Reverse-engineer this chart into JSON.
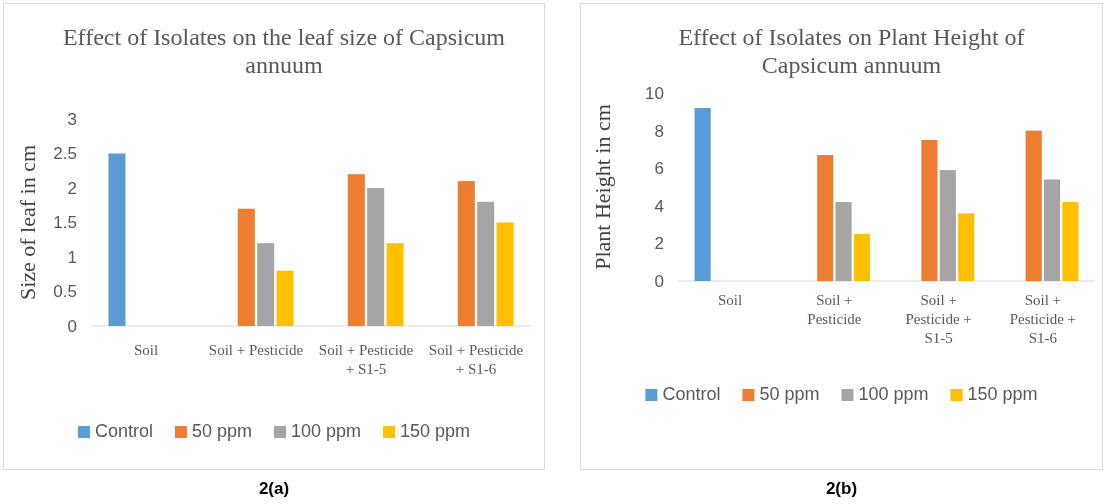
{
  "chart_data": [
    {
      "type": "bar",
      "title": "Effect of Isolates on the leaf size of Capsicum annuum",
      "ylabel": "Size of leaf in cm",
      "categories": [
        "Soil",
        "Soil + Pesticide",
        "Soil + Pesticide + S1-5",
        "Soil + Pesticide + S1-6"
      ],
      "series": [
        {
          "name": "Control",
          "color": "#5b9bd5",
          "values": [
            2.5,
            null,
            null,
            null
          ]
        },
        {
          "name": "50 ppm",
          "color": "#ed7d31",
          "values": [
            null,
            1.7,
            2.2,
            2.1
          ]
        },
        {
          "name": "100 ppm",
          "color": "#a5a5a5",
          "values": [
            null,
            1.2,
            2.0,
            1.8
          ]
        },
        {
          "name": "150 ppm",
          "color": "#ffc000",
          "values": [
            null,
            0.8,
            1.2,
            1.5
          ]
        }
      ],
      "ylim": [
        0,
        3
      ],
      "yticks": [
        0,
        0.5,
        1,
        1.5,
        2,
        2.5,
        3
      ],
      "grid": false,
      "legend": "bottom",
      "annotations": [
        "2(a)"
      ]
    },
    {
      "type": "bar",
      "title": "Effect of Isolates on Plant Height of Capsicum annuum",
      "ylabel": "Plant Height in cm",
      "categories": [
        "Soil",
        "Soil + Pesticide",
        "Soil + Pesticide + S1-5",
        "Soil + Pesticide + S1-6"
      ],
      "series": [
        {
          "name": "Control",
          "color": "#5b9bd5",
          "values": [
            9.2,
            null,
            null,
            null
          ]
        },
        {
          "name": "50 ppm",
          "color": "#ed7d31",
          "values": [
            null,
            6.7,
            7.5,
            8.0
          ]
        },
        {
          "name": "100 ppm",
          "color": "#a5a5a5",
          "values": [
            null,
            4.2,
            5.9,
            5.4
          ]
        },
        {
          "name": "150 ppm",
          "color": "#ffc000",
          "values": [
            null,
            2.5,
            3.6,
            4.2
          ]
        }
      ],
      "ylim": [
        0,
        10
      ],
      "yticks": [
        0,
        2,
        4,
        6,
        8,
        10
      ],
      "grid": false,
      "legend": "bottom",
      "annotations": [
        "2(b)"
      ]
    }
  ]
}
